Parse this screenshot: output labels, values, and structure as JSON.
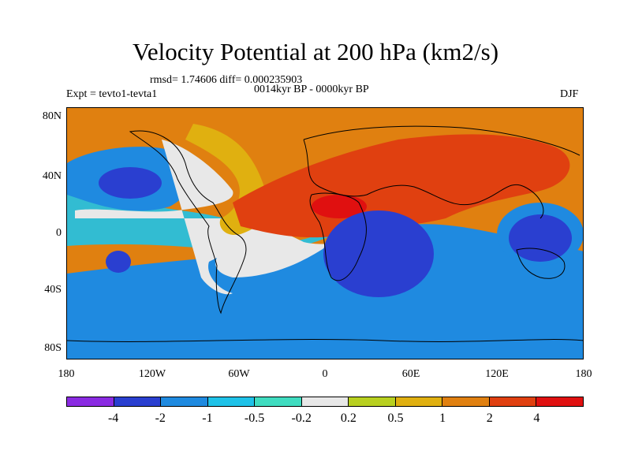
{
  "title": "Velocity Potential at 200 hPa (km2/s)",
  "stats": "rmsd= 1.74606 diff= 0.000235903",
  "experiment": "Expt = tevto1-tevta1",
  "period": "0014kyr BP - 0000kyr BP",
  "season": "DJF",
  "lat_ticks": [
    "80N",
    "40N",
    "0",
    "40S",
    "80S"
  ],
  "lon_ticks": [
    "180",
    "120W",
    "60W",
    "0",
    "60E",
    "120E",
    "180"
  ],
  "colorbar": {
    "labels": [
      "-4",
      "-2",
      "-1",
      "-0.5",
      "-0.2",
      "0.2",
      "0.5",
      "1",
      "2",
      "4"
    ],
    "colors": [
      "#8a2be2",
      "#2a3fd0",
      "#1f8ae0",
      "#1fc2e8",
      "#3fdcc0",
      "#e8e8e8",
      "#b8d020",
      "#e0b010",
      "#e08010",
      "#e04010",
      "#e01010"
    ]
  }
}
